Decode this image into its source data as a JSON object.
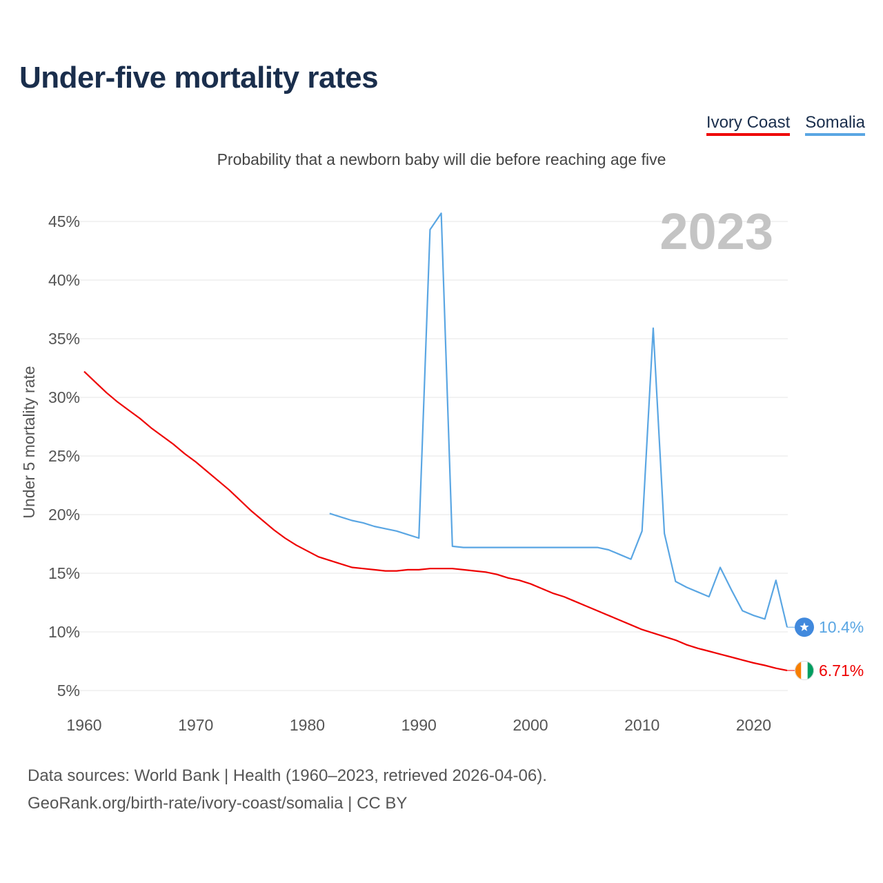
{
  "chart_data": {
    "type": "line",
    "title": "Under-five mortality rates",
    "subtitle": "Probability that a newborn baby will die before reaching age five",
    "ylabel": "Under 5 mortality rate",
    "xlabel": "",
    "xlim": [
      1960,
      2023
    ],
    "ylim": [
      5,
      45
    ],
    "yticks": [
      5,
      10,
      15,
      20,
      25,
      30,
      35,
      40,
      45
    ],
    "ytick_labels": [
      "5%",
      "10%",
      "15%",
      "20%",
      "25%",
      "30%",
      "35%",
      "40%",
      "45%"
    ],
    "xticks": [
      1960,
      1970,
      1980,
      1990,
      2000,
      2010,
      2020
    ],
    "xtick_labels": [
      "1960",
      "1970",
      "1980",
      "1990",
      "2000",
      "2010",
      "2020"
    ],
    "year_watermark": "2023",
    "legend_position": "top-right",
    "series": [
      {
        "name": "Ivory Coast",
        "color": "#ee0000",
        "end_label": "6.71%",
        "flag": "ivory-coast-flag",
        "x": [
          1960,
          1961,
          1962,
          1963,
          1964,
          1965,
          1966,
          1967,
          1968,
          1969,
          1970,
          1971,
          1972,
          1973,
          1974,
          1975,
          1976,
          1977,
          1978,
          1979,
          1980,
          1981,
          1982,
          1983,
          1984,
          1985,
          1986,
          1987,
          1988,
          1989,
          1990,
          1991,
          1992,
          1993,
          1994,
          1995,
          1996,
          1997,
          1998,
          1999,
          2000,
          2001,
          2002,
          2003,
          2004,
          2005,
          2006,
          2007,
          2008,
          2009,
          2010,
          2011,
          2012,
          2013,
          2014,
          2015,
          2016,
          2017,
          2018,
          2019,
          2020,
          2021,
          2022,
          2023
        ],
        "values": [
          32.2,
          31.3,
          30.4,
          29.6,
          28.9,
          28.2,
          27.4,
          26.7,
          26.0,
          25.2,
          24.5,
          23.7,
          22.9,
          22.1,
          21.2,
          20.3,
          19.5,
          18.7,
          18.0,
          17.4,
          16.9,
          16.4,
          16.1,
          15.8,
          15.5,
          15.4,
          15.3,
          15.2,
          15.2,
          15.3,
          15.3,
          15.4,
          15.4,
          15.4,
          15.3,
          15.2,
          15.1,
          14.9,
          14.6,
          14.4,
          14.1,
          13.7,
          13.3,
          13.0,
          12.6,
          12.2,
          11.8,
          11.4,
          11.0,
          10.6,
          10.2,
          9.9,
          9.6,
          9.3,
          8.9,
          8.6,
          8.35,
          8.1,
          7.85,
          7.6,
          7.35,
          7.15,
          6.9,
          6.71
        ]
      },
      {
        "name": "Somalia",
        "color": "#5aa6e3",
        "end_label": "10.4%",
        "flag": "somalia-flag",
        "x": [
          1982,
          1983,
          1984,
          1985,
          1986,
          1987,
          1988,
          1989,
          1990,
          1991,
          1992,
          1993,
          1994,
          1995,
          1996,
          1997,
          1998,
          1999,
          2000,
          2001,
          2002,
          2003,
          2004,
          2005,
          2006,
          2007,
          2008,
          2009,
          2010,
          2011,
          2012,
          2013,
          2014,
          2015,
          2016,
          2017,
          2018,
          2019,
          2020,
          2021,
          2022,
          2023
        ],
        "values": [
          20.1,
          19.8,
          19.5,
          19.3,
          19.0,
          18.8,
          18.6,
          18.3,
          18.0,
          44.3,
          45.7,
          17.3,
          17.2,
          17.2,
          17.2,
          17.2,
          17.2,
          17.2,
          17.2,
          17.2,
          17.2,
          17.2,
          17.2,
          17.2,
          17.2,
          17.0,
          16.6,
          16.2,
          18.6,
          35.9,
          18.4,
          14.3,
          13.8,
          13.4,
          13.0,
          15.5,
          13.6,
          11.8,
          11.4,
          11.1,
          14.4,
          10.4
        ]
      }
    ]
  }
}
